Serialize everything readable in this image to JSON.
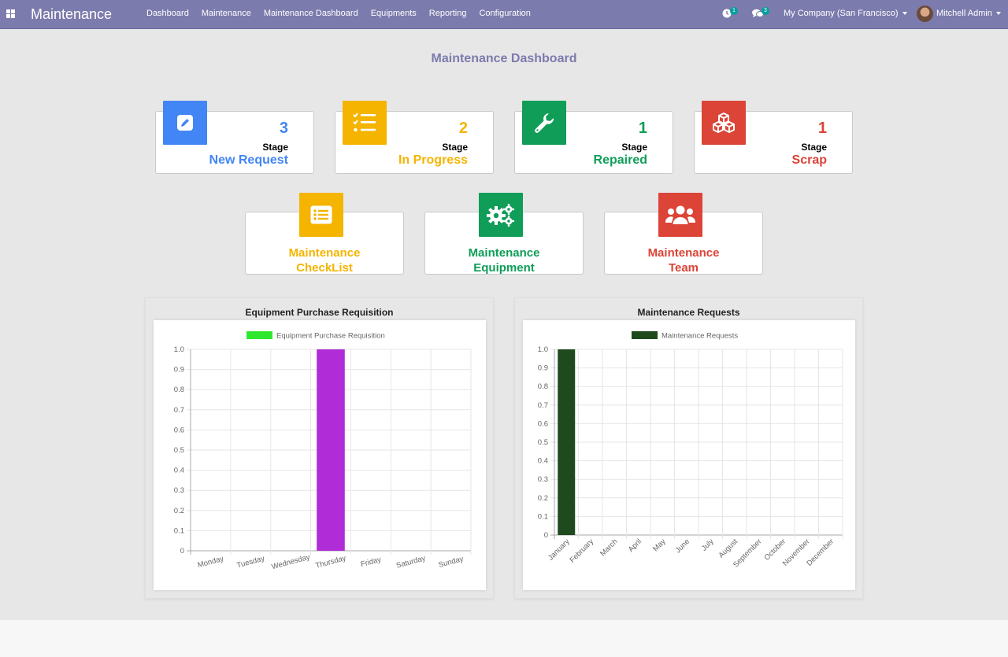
{
  "nav": {
    "brand": "Maintenance",
    "menu": [
      "Dashboard",
      "Maintenance",
      "Maintenance Dashboard",
      "Equipments",
      "Reporting",
      "Configuration"
    ],
    "activity_count": "1",
    "message_count": "3",
    "company": "My Company (San Francisco)",
    "user": "Mitchell Admin"
  },
  "page_title": "Maintenance Dashboard",
  "stages": [
    {
      "count": "3",
      "label": "Stage",
      "name": "New Request",
      "icon": "pencil-icon",
      "color": "#4285f4"
    },
    {
      "count": "2",
      "label": "Stage",
      "name": "In Progress",
      "icon": "checklist-icon",
      "color": "#f4b400"
    },
    {
      "count": "1",
      "label": "Stage",
      "name": "Repaired",
      "icon": "wrench-icon",
      "color": "#0f9d58"
    },
    {
      "count": "1",
      "label": "Stage",
      "name": "Scrap",
      "icon": "cubes-icon",
      "color": "#db4437"
    }
  ],
  "shortcuts": [
    {
      "line1": "Maintenance",
      "line2": "CheckList",
      "icon": "list-icon",
      "color": "#f4b400"
    },
    {
      "line1": "Maintenance",
      "line2": "Equipment",
      "icon": "gears-icon",
      "color": "#0f9d58"
    },
    {
      "line1": "Maintenance",
      "line2": "Team",
      "icon": "users-icon",
      "color": "#db4437"
    }
  ],
  "charts": {
    "purchase_title": "Equipment Purchase Requisition",
    "requests_title": "Maintenance Requests"
  },
  "chart_data": [
    {
      "type": "bar",
      "title": "Equipment Purchase Requisition",
      "categories": [
        "Monday",
        "Tuesday",
        "Wednesday",
        "Thursday",
        "Friday",
        "Saturday",
        "Sunday"
      ],
      "series": [
        {
          "name": "Equipment Purchase Requisition",
          "values": [
            0,
            0,
            0,
            1,
            0,
            0,
            0
          ],
          "legend_color": "#2ee82e",
          "bar_color": "#b02cd6"
        }
      ],
      "yticks": [
        "0",
        "0.1",
        "0.2",
        "0.3",
        "0.4",
        "0.5",
        "0.6",
        "0.7",
        "0.8",
        "0.9",
        "1.0"
      ],
      "ylim": [
        0,
        1
      ],
      "grid": true,
      "legend_position": "top"
    },
    {
      "type": "bar",
      "title": "Maintenance Requests",
      "categories": [
        "January",
        "February",
        "March",
        "April",
        "May",
        "June",
        "July",
        "August",
        "September",
        "October",
        "November",
        "December"
      ],
      "series": [
        {
          "name": "Maintenance Requests",
          "values": [
            1,
            0,
            0,
            0,
            0,
            0,
            0,
            0,
            0,
            0,
            0,
            0
          ],
          "legend_color": "#1e4a1e",
          "bar_color": "#1e4a1e"
        }
      ],
      "yticks": [
        "0",
        "0.1",
        "0.2",
        "0.3",
        "0.4",
        "0.5",
        "0.6",
        "0.7",
        "0.8",
        "0.9",
        "1.0"
      ],
      "ylim": [
        0,
        1
      ],
      "grid": true,
      "legend_position": "top"
    }
  ]
}
